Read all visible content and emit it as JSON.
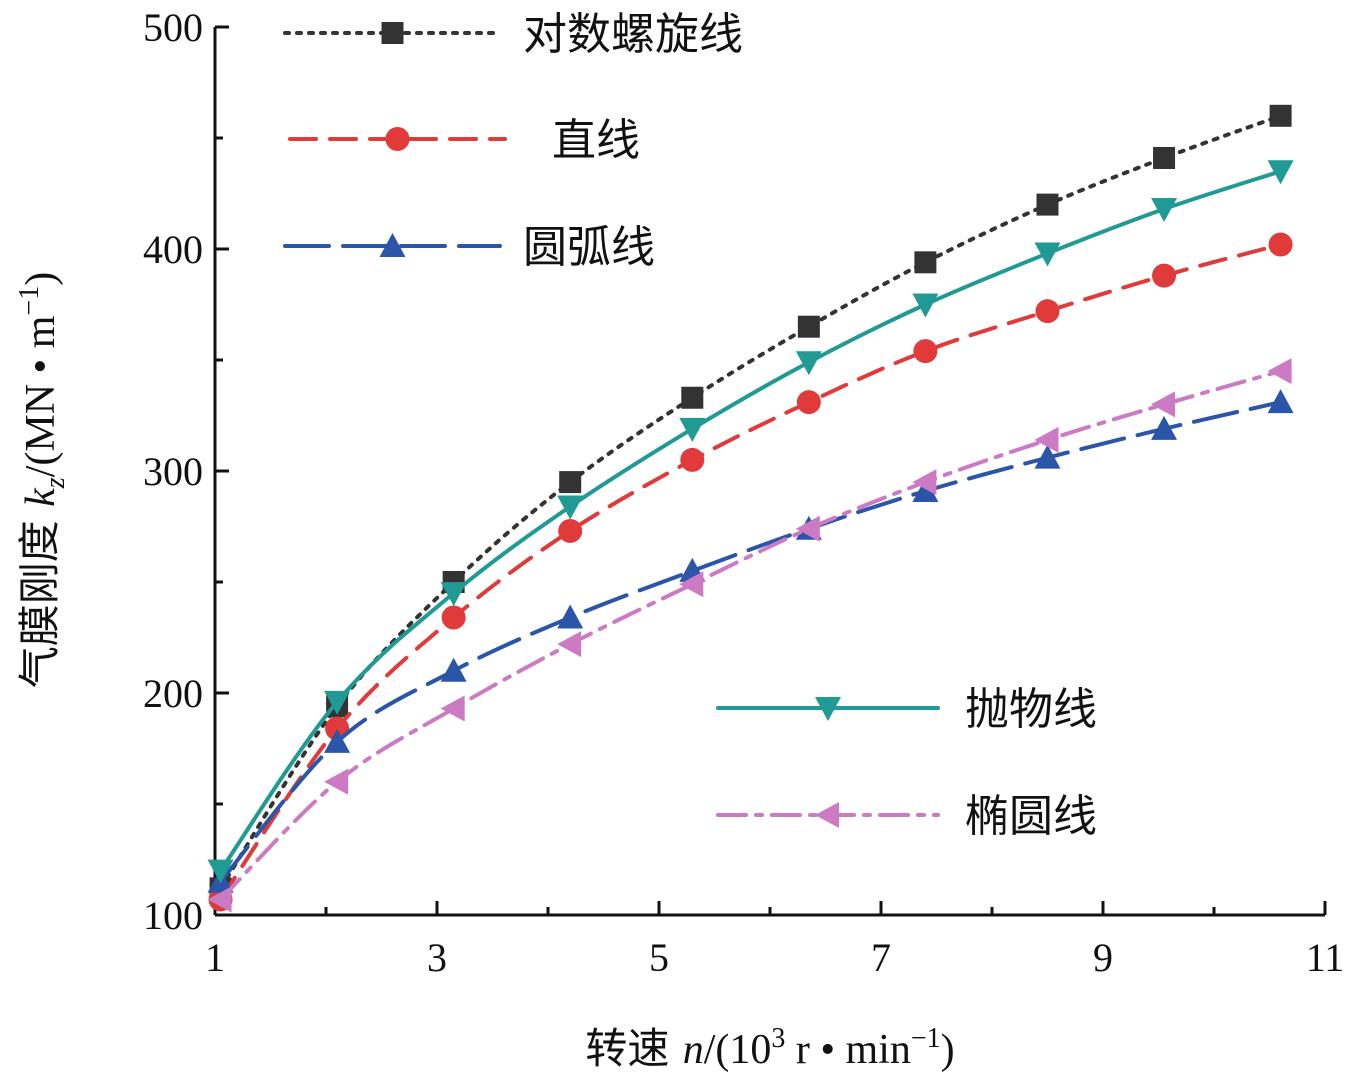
{
  "chart_data": {
    "type": "line",
    "xlabel_parts": [
      "转速 ",
      "n",
      "/(10",
      "3",
      " r • min",
      "−1",
      ")"
    ],
    "ylabel_parts": [
      "气膜刚度 ",
      "k",
      "z",
      "/(MN • m",
      "−1",
      ")"
    ],
    "xlim": [
      1,
      11
    ],
    "ylim": [
      100,
      500
    ],
    "x_major_ticks": [
      1,
      3,
      5,
      7,
      9,
      11
    ],
    "x_tick_labels": [
      "1",
      "3",
      "5",
      "7",
      "9",
      "11"
    ],
    "x_minor_ticks": [
      2,
      4,
      6,
      8,
      10
    ],
    "y_major_ticks": [
      100,
      200,
      300,
      400,
      500
    ],
    "y_tick_labels": [
      "100",
      "200",
      "300",
      "400",
      "500"
    ],
    "y_minor_ticks": [
      150,
      250,
      350,
      450
    ],
    "x": [
      1.05,
      2.1,
      3.15,
      4.2,
      5.3,
      6.35,
      7.4,
      8.5,
      9.55,
      10.6
    ],
    "series": [
      {
        "name": "对数螺旋线",
        "color": "#333333",
        "dash": "dotted",
        "marker": "square",
        "values": [
          112,
          194,
          250,
          295,
          333,
          365,
          394,
          420,
          441,
          460
        ]
      },
      {
        "name": "直线",
        "color": "#e03a3a",
        "dash": "dashed",
        "marker": "circle",
        "values": [
          107,
          184,
          234,
          273,
          305,
          331,
          354,
          372,
          388,
          402
        ]
      },
      {
        "name": "圆弧线",
        "color": "#2b55a8",
        "dash": "longdash",
        "marker": "triangle-up",
        "values": [
          115,
          178,
          210,
          234,
          255,
          274,
          291,
          306,
          319,
          331
        ]
      },
      {
        "name": "抛物线",
        "color": "#1f9a94",
        "dash": "solid",
        "marker": "triangle-down",
        "values": [
          120,
          196,
          245,
          284,
          319,
          349,
          375,
          398,
          418,
          435
        ]
      },
      {
        "name": "椭圆线",
        "color": "#cc7ac4",
        "dash": "dashdot",
        "marker": "triangle-left",
        "values": [
          107,
          160,
          193,
          222,
          249,
          274,
          295,
          314,
          330,
          345
        ]
      }
    ],
    "legend": {
      "placement": "top-left and bottom-right",
      "top_group": [
        0,
        1,
        2
      ],
      "bottom_group": [
        3,
        4
      ]
    },
    "grid": false
  }
}
